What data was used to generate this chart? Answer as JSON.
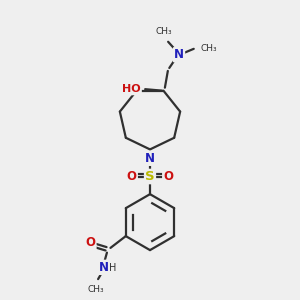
{
  "bg_color": "#efefef",
  "bond_color": "#303030",
  "nitrogen_color": "#2020bb",
  "oxygen_color": "#cc1111",
  "sulfur_color": "#bbbb00",
  "lw": 1.6,
  "fs": 8.5,
  "xlim": [
    0,
    10
  ],
  "ylim": [
    0,
    10
  ]
}
